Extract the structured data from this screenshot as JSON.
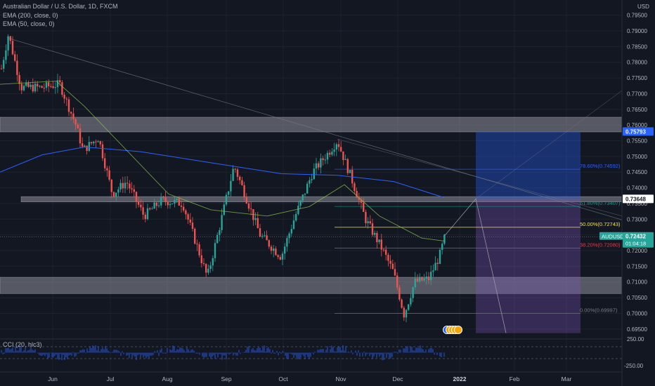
{
  "legend": {
    "symbol_line": "Australian Dollar / U.S. Dollar, 1D, FXCM",
    "ema200": "EMA (200, close, 0)",
    "ema50": "EMA (50, close, 0)",
    "cci": "CCI (20, hlc3)"
  },
  "price_axis": {
    "unit": "USD",
    "ticks": [
      "0.79500",
      "0.79000",
      "0.78500",
      "0.78000",
      "0.77500",
      "0.77000",
      "0.76500",
      "0.76000",
      "0.75500",
      "0.75000",
      "0.74500",
      "0.74000",
      "0.73500",
      "0.73000",
      "0.72500",
      "0.72000",
      "0.71500",
      "0.71000",
      "0.70500",
      "0.70000",
      "0.69500"
    ],
    "ticks_values": [
      0.795,
      0.79,
      0.785,
      0.78,
      0.775,
      0.77,
      0.765,
      0.76,
      0.755,
      0.75,
      0.745,
      0.74,
      0.735,
      0.73,
      0.725,
      0.72,
      0.715,
      0.71,
      0.705,
      0.7,
      0.695
    ],
    "tag_upper": "0.75793",
    "tag_upper_value": 0.75793,
    "tag_mid": "0.73648",
    "tag_mid_value": 0.73648,
    "tag_symbol": "AUDUSD",
    "tag_last": "0.72432",
    "tag_last_value": 0.72432,
    "tag_countdown": "01:04:18"
  },
  "cci_axis": {
    "ticks": [
      "250.00",
      "-250.00"
    ]
  },
  "time_axis": {
    "labels": [
      "Jun",
      "Jul",
      "Aug",
      "Sep",
      "Oct",
      "Nov",
      "Dec",
      "2022",
      "Feb",
      "Mar"
    ],
    "bold_label": "2022"
  },
  "fib_labels": [
    {
      "text": "78.60%(0.74592)",
      "value": 0.74592,
      "color": "#2962ff"
    },
    {
      "text": "61.80%(0.73407)",
      "value": 0.73407,
      "color": "#089981"
    },
    {
      "text": "50.00%(0.72743)",
      "value": 0.72743,
      "color": "#fbe324"
    },
    {
      "text": "38.20%(0.72080)",
      "value": 0.7208,
      "color": "#f23645"
    },
    {
      "text": "0.00%(0.69997)",
      "value": 0.69997,
      "color": "#787b86"
    }
  ],
  "colors": {
    "background": "#131722",
    "up": "#26a69a",
    "down": "#ef5350",
    "ema200": "#2962ff",
    "ema50": "#8bc34a",
    "zone": "#b2b5be",
    "target_box": "#2962ff",
    "stop_box": "#7e57c2",
    "cci": "#2962ff"
  },
  "chart_data": {
    "type": "candlestick",
    "symbol": "AUDUSD",
    "timeframe": "1D",
    "price_unit": "USD",
    "ylim": [
      0.6925,
      0.7985
    ],
    "last_price": 0.72432,
    "ohlc_key_points": [
      {
        "date": "2021-05-10",
        "close": 0.789
      },
      {
        "date": "2021-06-14",
        "close": 0.772
      },
      {
        "date": "2021-06-21",
        "close": 0.755
      },
      {
        "date": "2021-07-20",
        "close": 0.733
      },
      {
        "date": "2021-08-20",
        "close": 0.7115
      },
      {
        "date": "2021-09-03",
        "close": 0.747
      },
      {
        "date": "2021-09-21",
        "close": 0.723
      },
      {
        "date": "2021-10-28",
        "close": 0.755
      },
      {
        "date": "2021-11-26",
        "close": 0.714
      },
      {
        "date": "2021-12-03",
        "close": 0.6995
      },
      {
        "date": "2021-12-24",
        "close": 0.7243
      }
    ],
    "indicators": {
      "ema200": [
        0.745,
        0.752,
        0.753,
        0.75,
        0.747,
        0.743,
        0.737
      ],
      "ema50": [
        0.776,
        0.755,
        0.734,
        0.731,
        0.73,
        0.726,
        0.722
      ]
    },
    "zones": [
      {
        "from": 0.7578,
        "to": 0.7625
      },
      {
        "from": 0.7355,
        "to": 0.7372
      },
      {
        "from": 0.7063,
        "to": 0.7115
      }
    ],
    "fib_levels": {
      "78.60%": 0.74592,
      "61.80%": 0.73407,
      "50.00%": 0.72743,
      "38.20%": 0.7208,
      "0.00%": 0.69997
    },
    "cci_range": [
      -250,
      250
    ]
  }
}
